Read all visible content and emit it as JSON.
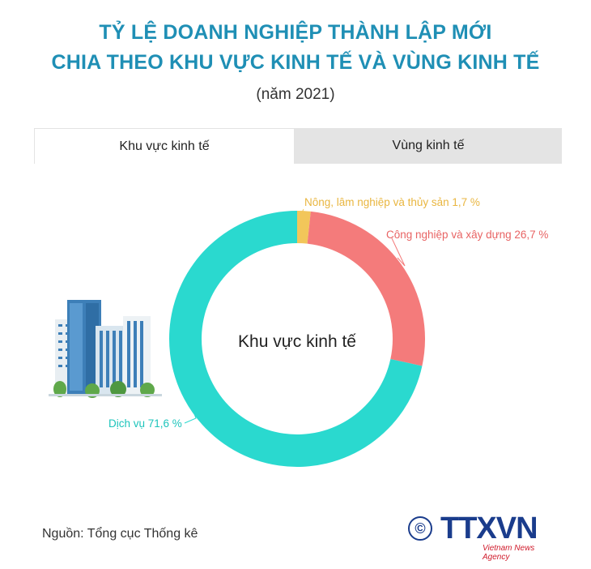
{
  "header": {
    "title_line1": "TỶ LỆ DOANH NGHIỆP THÀNH LẬP MỚI",
    "title_line2": "CHIA THEO KHU VỰC KINH TẾ VÀ VÙNG KINH TẾ",
    "subtitle": "(năm 2021)"
  },
  "tabs": [
    {
      "label": "Khu vực kinh tế",
      "active": true
    },
    {
      "label": "Vùng kinh tế",
      "active": false
    }
  ],
  "chart_data": {
    "type": "pie",
    "center_label": "Khu vực kinh tế",
    "series": [
      {
        "name": "Nông, lâm nghiệp và thủy sản",
        "value": 1.7,
        "label": "Nông, lâm nghiệp và thủy sản 1,7 %",
        "color": "#f2c65a"
      },
      {
        "name": "Công nghiệp và xây dựng",
        "value": 26.7,
        "label": "Công nghiệp và xây dựng 26,7 %",
        "color": "#f47b7b"
      },
      {
        "name": "Dịch vụ",
        "value": 71.6,
        "label": "Dịch vụ 71,6 %",
        "color": "#2ad9cf"
      }
    ]
  },
  "footer": {
    "source": "Nguồn: Tổng cục Thống kê",
    "logo_symbol": "©",
    "logo_text": "TTXVN",
    "logo_subtext": "Vietnam News Agency"
  },
  "colors": {
    "title": "#1f8fb5",
    "building_blue": "#3d7fb8",
    "building_green": "#5fa84a"
  }
}
